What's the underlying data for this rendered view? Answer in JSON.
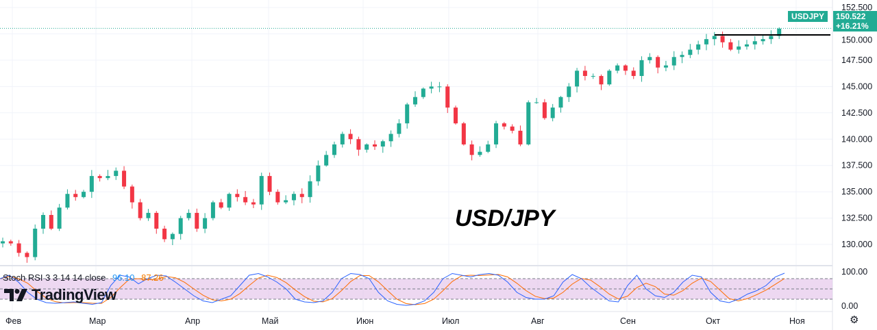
{
  "symbol_tag": "USDJPY",
  "last_price": "150.522",
  "change_pct": "+16.21%",
  "overlay_title": "USD/JPY",
  "logo_text": "TradingView",
  "indicator": {
    "name": "Stoch RSI 3 3 14 14 close",
    "k": "96.10",
    "d": "87.26",
    "axis": [
      "100.00",
      "0.00"
    ]
  },
  "colors": {
    "up": "#22ab94",
    "down": "#f23645",
    "k": "#2962ff",
    "d": "#ff6d00",
    "band": "#e1bee7"
  },
  "chart_data": {
    "type": "candlestick",
    "title": "USD/JPY",
    "y_ticks": [
      "152.500",
      "150.000",
      "147.500",
      "145.000",
      "142.500",
      "140.000",
      "137.500",
      "135.000",
      "132.500",
      "130.000"
    ],
    "ylim": [
      130,
      152.5
    ],
    "x_ticks": [
      "Фев",
      "Мар",
      "Апр",
      "Май",
      "Июн",
      "Июл",
      "Авг",
      "Сен",
      "Окт",
      "Ноя"
    ],
    "closes": [
      130.3,
      130.1,
      129.2,
      128.8,
      131.5,
      132.8,
      131.5,
      133.5,
      134.8,
      134.5,
      135,
      136.5,
      136.3,
      136.5,
      137,
      135.5,
      134,
      132.5,
      133,
      131.5,
      130.5,
      131,
      132.5,
      133,
      131.5,
      132.5,
      134,
      133.5,
      134.8,
      134.5,
      134,
      133.8,
      136.5,
      135,
      134,
      134.2,
      134.8,
      134.5,
      136,
      137.5,
      138.5,
      139.5,
      140.5,
      140,
      139,
      139.5,
      139.3,
      139.8,
      140.5,
      141.5,
      143.3,
      144,
      144.8,
      145,
      145,
      143,
      141.5,
      139.5,
      138.5,
      138.8,
      139.5,
      141.5,
      141.2,
      140.8,
      139.5,
      143.5,
      143.5,
      142,
      143,
      144,
      145,
      146.5,
      146,
      146,
      145.2,
      146.5,
      147,
      146.5,
      146,
      147.5,
      147.8,
      146.8,
      147,
      147.8,
      148,
      148.5,
      149,
      149.5,
      149.8,
      149.2,
      148.5,
      148.8,
      149,
      149.3,
      149.5,
      149.8,
      150.5
    ],
    "resistance": 149.9,
    "stoch_k": [
      80,
      90,
      70,
      40,
      20,
      10,
      8,
      10,
      12,
      8,
      5,
      10,
      60,
      90,
      85,
      65,
      80,
      90,
      88,
      70,
      50,
      30,
      15,
      10,
      20,
      30,
      60,
      90,
      95,
      85,
      70,
      50,
      20,
      12,
      10,
      15,
      40,
      80,
      95,
      92,
      80,
      40,
      15,
      5,
      2,
      5,
      15,
      40,
      80,
      95,
      90,
      85,
      92,
      95,
      90,
      70,
      40,
      25,
      20,
      20,
      30,
      70,
      92,
      80,
      55,
      35,
      15,
      12,
      60,
      90,
      50,
      30,
      25,
      40,
      70,
      90,
      85,
      40,
      15,
      10,
      20,
      35,
      45,
      60,
      85,
      96
    ]
  }
}
